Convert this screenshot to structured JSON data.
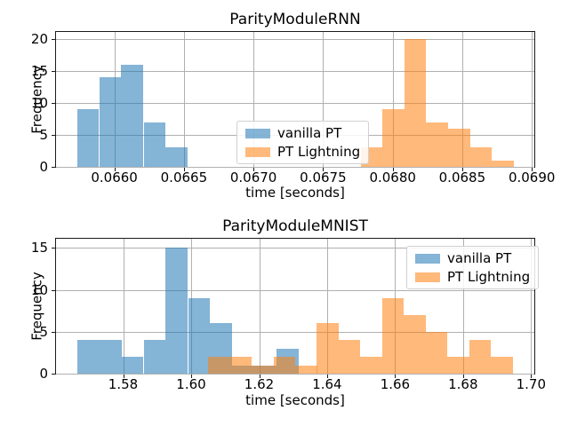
{
  "figure": {
    "background": "#ffffff"
  },
  "colors": {
    "vanilla_pt": "#1f77b4",
    "pt_lightning": "#ff7f0e",
    "bar_alpha": 0.55,
    "grid": "#b0b0b0",
    "spine": "#1a1a1a",
    "text": "#000000",
    "legend_border": "#d0d0d0"
  },
  "chart_data": [
    {
      "type": "bar",
      "subtype": "histogram",
      "title": "ParityModuleRNN",
      "xlabel": "time [seconds]",
      "ylabel": "Frequency",
      "xlim": [
        0.065581,
        0.069018
      ],
      "ylim": [
        0,
        21.05
      ],
      "grid": true,
      "legend_position": "center",
      "xticks": {
        "values": [
          0.066,
          0.0665,
          0.067,
          0.0675,
          0.068,
          0.0685,
          0.069
        ],
        "labels": [
          "0.0660",
          "0.0665",
          "0.0670",
          "0.0675",
          "0.0680",
          "0.0685",
          "0.0690"
        ]
      },
      "yticks": {
        "values": [
          0,
          5,
          10,
          15,
          20
        ],
        "labels": [
          "0",
          "5",
          "10",
          "15",
          "20"
        ]
      },
      "series": [
        {
          "name": "vanilla PT",
          "color": "#1f77b4",
          "bin_edges": [
            0.065732,
            0.065891,
            0.06605,
            0.06621,
            0.066369,
            0.066528
          ],
          "counts": [
            9,
            14,
            16,
            7,
            3
          ]
        },
        {
          "name": "PT Lightning",
          "color": "#ff7f0e",
          "bin_edges": [
            0.06777,
            0.067927,
            0.068084,
            0.068241,
            0.068398,
            0.068555,
            0.068713,
            0.06887
          ],
          "counts": [
            3,
            9,
            20,
            7,
            6,
            3,
            1
          ]
        }
      ]
    },
    {
      "type": "bar",
      "subtype": "histogram",
      "title": "ParityModuleMNIST",
      "xlabel": "time [seconds]",
      "ylabel": "Frequency",
      "xlim": [
        1.56024,
        1.70097
      ],
      "ylim": [
        0,
        16.08
      ],
      "grid": true,
      "legend_position": "upper right",
      "xticks": {
        "values": [
          1.58,
          1.6,
          1.62,
          1.64,
          1.66,
          1.68,
          1.7
        ],
        "labels": [
          "1.58",
          "1.60",
          "1.62",
          "1.64",
          "1.66",
          "1.68",
          "1.70"
        ]
      },
      "yticks": {
        "values": [
          0,
          5,
          10,
          15
        ],
        "labels": [
          "0",
          "5",
          "10",
          "15"
        ]
      },
      "series": [
        {
          "name": "vanilla PT",
          "color": "#1f77b4",
          "bin_edges": [
            1.5664,
            1.5729,
            1.5795,
            1.586,
            1.5925,
            1.5991,
            1.6056,
            1.6121,
            1.6186,
            1.6252,
            1.6317
          ],
          "counts": [
            4,
            4,
            2,
            4,
            15,
            9,
            6,
            1,
            1,
            3
          ]
        },
        {
          "name": "PT Lightning",
          "color": "#ff7f0e",
          "bin_edges": [
            1.605,
            1.6114,
            1.6178,
            1.6242,
            1.6306,
            1.637,
            1.6434,
            1.6498,
            1.6562,
            1.6626,
            1.669,
            1.6754,
            1.6818,
            1.6882,
            1.6946
          ],
          "counts": [
            2,
            2,
            1,
            2,
            1,
            6,
            4,
            2,
            9,
            7,
            5,
            2,
            4,
            2
          ]
        }
      ]
    }
  ]
}
